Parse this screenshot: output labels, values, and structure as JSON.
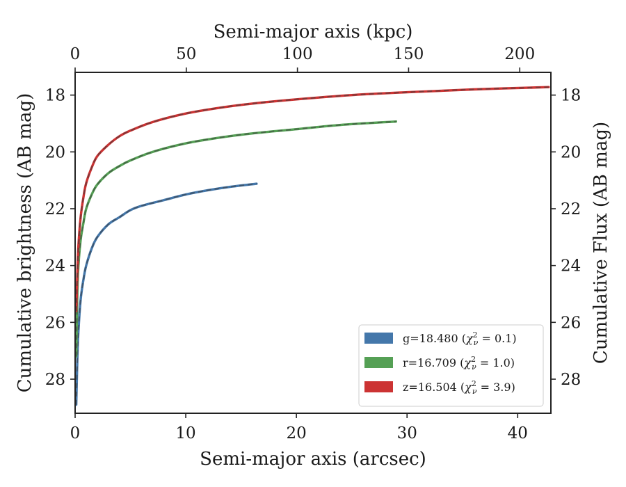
{
  "chart_data": {
    "type": "line",
    "xlabel": "Semi-major axis (arcsec)",
    "top_xlabel": "Semi-major axis (kpc)",
    "ylabel": "Cumulative brightness (AB mag)",
    "right_ylabel": "Cumulative Flux (AB mag)",
    "xlim": [
      0,
      43
    ],
    "top_xlim": [
      0,
      214
    ],
    "ylim": [
      29.2,
      17.2
    ],
    "y_inverted": true,
    "x_ticks": [
      0,
      10,
      20,
      30,
      40
    ],
    "top_x_ticks": [
      0,
      50,
      100,
      150,
      200
    ],
    "y_ticks": [
      18,
      20,
      22,
      24,
      26,
      28
    ],
    "legend_position": "lower-right",
    "grid": false,
    "series": [
      {
        "name": "g=18.480",
        "chi2": "0.1",
        "color": "#4477aa",
        "x": [
          0.1,
          0.2,
          0.3,
          0.5,
          0.75,
          1,
          1.5,
          2,
          3,
          4,
          5,
          6,
          8,
          10,
          12,
          14,
          16.4
        ],
        "y": [
          28.9,
          27.3,
          26.3,
          25.2,
          24.5,
          24.0,
          23.4,
          23.0,
          22.55,
          22.3,
          22.05,
          21.9,
          21.7,
          21.5,
          21.35,
          21.23,
          21.12
        ]
      },
      {
        "name": "r=16.709",
        "chi2": "1.0",
        "color": "#55a055",
        "x": [
          0.1,
          0.2,
          0.3,
          0.5,
          0.75,
          1,
          1.5,
          2,
          3,
          4,
          5,
          7,
          10,
          13,
          16,
          20,
          24,
          29
        ],
        "y": [
          27.2,
          25.0,
          24.0,
          23.1,
          22.5,
          22.0,
          21.5,
          21.15,
          20.75,
          20.5,
          20.3,
          20.0,
          19.7,
          19.5,
          19.35,
          19.2,
          19.05,
          18.93
        ]
      },
      {
        "name": "z=16.504",
        "chi2": "3.9",
        "color": "#cc3333",
        "x": [
          0.1,
          0.2,
          0.3,
          0.5,
          0.75,
          1,
          1.5,
          2,
          3,
          4,
          5,
          7,
          10,
          13,
          16,
          20,
          25,
          30,
          36,
          42.8
        ],
        "y": [
          25.6,
          24.3,
          23.3,
          22.3,
          21.6,
          21.1,
          20.55,
          20.15,
          19.75,
          19.45,
          19.25,
          18.95,
          18.65,
          18.45,
          18.3,
          18.15,
          18.0,
          17.9,
          17.8,
          17.72
        ]
      }
    ]
  }
}
